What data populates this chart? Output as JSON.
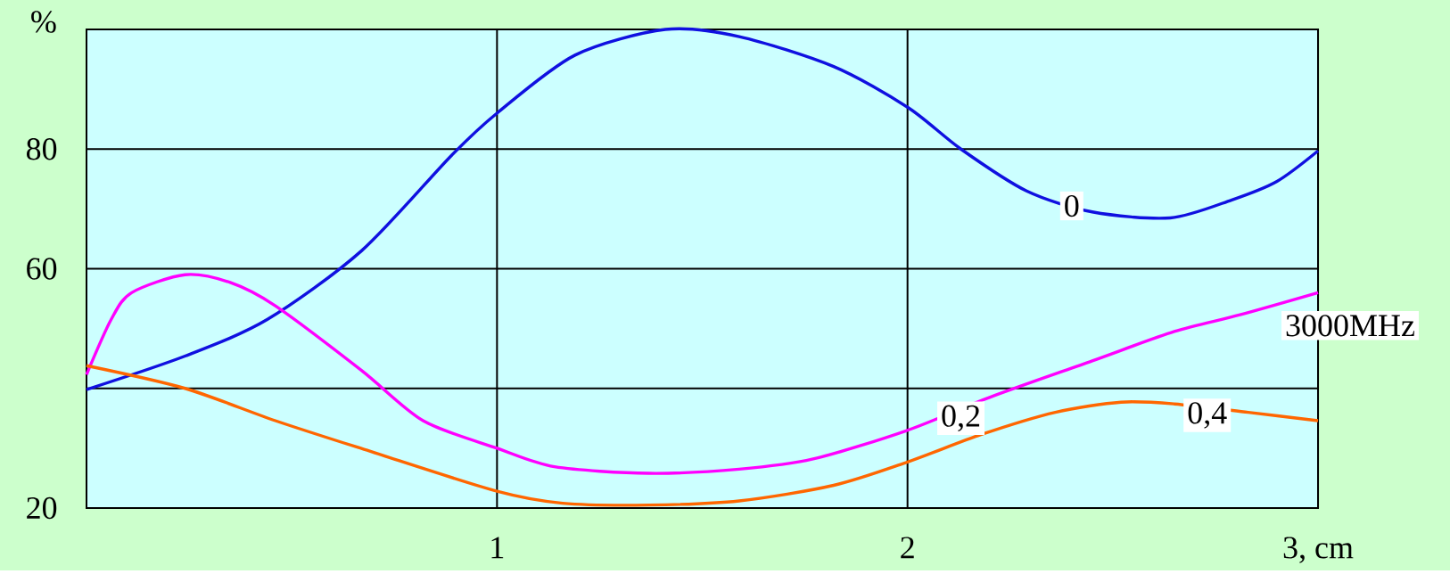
{
  "chart_data": {
    "type": "line",
    "ylabel": "%",
    "xlim": [
      0,
      3
    ],
    "ylim": [
      20,
      100
    ],
    "xticks": [
      1,
      2,
      {
        "value": 3,
        "label": "3, cm"
      }
    ],
    "yticks": [
      20,
      {
        "value": 40,
        "label": null
      },
      60,
      80,
      {
        "value": 100,
        "label": null
      }
    ],
    "grid": true,
    "annotations": [
      "3000MHz"
    ],
    "series": [
      {
        "name": "0",
        "color": "#1010e0",
        "x": [
          0,
          0.24,
          0.44,
          0.67,
          0.89,
          1.0,
          1.19,
          1.41,
          1.59,
          1.82,
          2.0,
          2.13,
          2.29,
          2.45,
          2.64,
          2.79,
          2.9,
          3.0
        ],
        "values": [
          39.8,
          45.4,
          51.5,
          63,
          79,
          86,
          95.7,
          100,
          98.8,
          93.8,
          87,
          80,
          73,
          69.5,
          68.5,
          71.5,
          74.6,
          79.7
        ]
      },
      {
        "name": "0,2",
        "color": "#ff00ff",
        "x": [
          0,
          0.06,
          0.11,
          0.24,
          0.35,
          0.46,
          0.67,
          0.82,
          1.0,
          1.14,
          1.37,
          1.59,
          1.77,
          2.0,
          2.2,
          2.45,
          2.65,
          2.81,
          3.0
        ],
        "values": [
          42.3,
          51.5,
          56,
          59,
          57.7,
          53.8,
          43,
          34.6,
          30,
          26.9,
          25.8,
          26.5,
          28.2,
          33,
          38.5,
          44.6,
          49.5,
          52.3,
          56
        ]
      },
      {
        "name": "0,4",
        "color": "#ff6600",
        "x": [
          0,
          0.24,
          0.46,
          0.69,
          1.0,
          1.16,
          1.37,
          1.59,
          1.82,
          2.0,
          2.18,
          2.36,
          2.52,
          2.65,
          2.83,
          3.0
        ],
        "values": [
          43.8,
          40,
          34.6,
          29.5,
          22.8,
          20.8,
          20.5,
          21.2,
          23.8,
          27.7,
          32.3,
          36,
          37.7,
          37.4,
          36,
          34.6
        ]
      }
    ]
  }
}
